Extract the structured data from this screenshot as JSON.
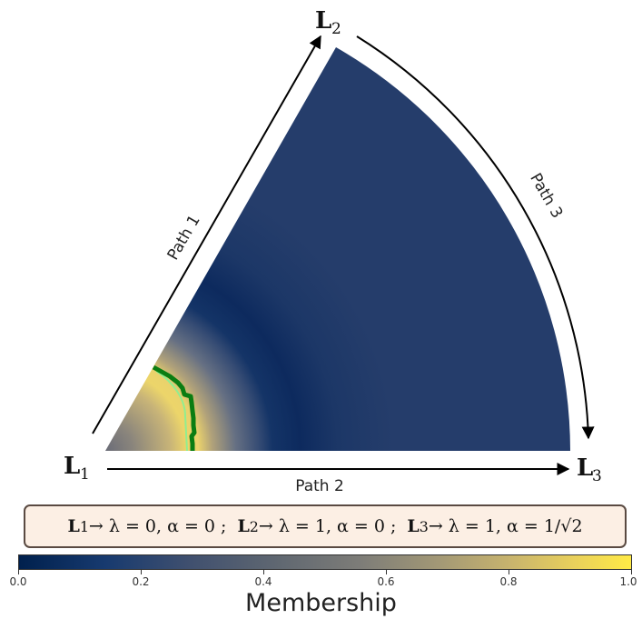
{
  "vertices": {
    "l1": {
      "letter": "L",
      "sub": "1"
    },
    "l2": {
      "letter": "L",
      "sub": "2"
    },
    "l3": {
      "letter": "L",
      "sub": "3"
    }
  },
  "paths": {
    "path1": "Path 1",
    "path2": "Path 2",
    "path3": "Path 3"
  },
  "legend": {
    "l1_letter": "L",
    "l1_sub": "1",
    "l1_text": "→ λ = 0,  α = 0 ;",
    "l2_letter": "L",
    "l2_sub": "2",
    "l2_text": "→ λ = 1,  α = 0 ;",
    "l3_letter": "L",
    "l3_sub": "3",
    "l3_text": "→ λ = 1,  α = 1/√2"
  },
  "colorbar": {
    "title": "Membership",
    "ticks": [
      "0.0",
      "0.2",
      "0.4",
      "0.6",
      "0.8",
      "1.0"
    ],
    "colormap": [
      "#00204d",
      "#173a6f",
      "#40506f",
      "#5f6771",
      "#7e7d78",
      "#a19776",
      "#c7b36e",
      "#ead15b",
      "#ffea46"
    ]
  },
  "colors": {
    "region_base": "#253d6b",
    "region_dark_band": "#0d2a5e",
    "boundary_green": "#0a7d12",
    "boundary_light": "#90ee90"
  }
}
